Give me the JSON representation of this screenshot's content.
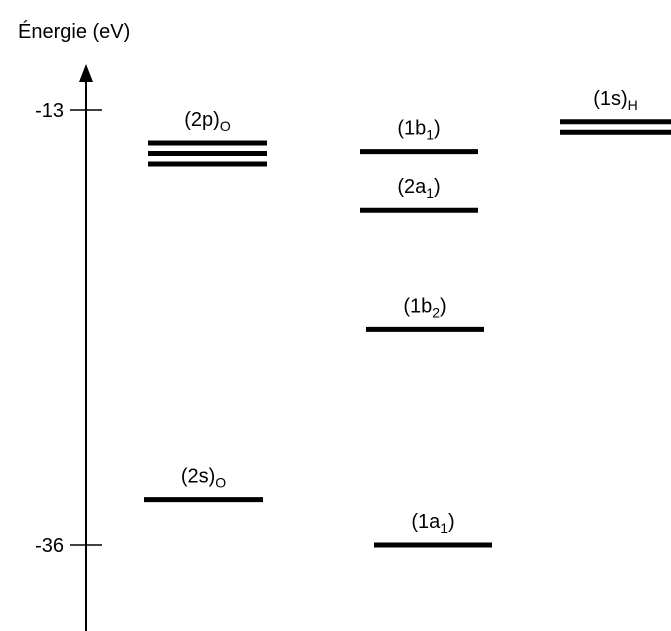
{
  "axis": {
    "title": "Énergie (eV)",
    "ticks": [
      -13,
      -36
    ]
  },
  "levels": [
    {
      "label": "(2p)",
      "sub": "O",
      "energy": -15.3,
      "degeneracy": 3
    },
    {
      "label": "(2s)",
      "sub": "O",
      "energy": -33.6,
      "degeneracy": 1
    },
    {
      "label": "(1b",
      "sub": "1",
      "tail": ")",
      "energy": -15.2,
      "degeneracy": 1
    },
    {
      "label": "(2a",
      "sub": "1",
      "tail": ")",
      "energy": -18.3,
      "degeneracy": 1
    },
    {
      "label": "(1b",
      "sub": "2",
      "tail": ")",
      "energy": -24.6,
      "degeneracy": 1
    },
    {
      "label": "(1a",
      "sub": "1",
      "tail": ")",
      "energy": -36,
      "degeneracy": 1
    },
    {
      "label": "(1s)",
      "sub": "H",
      "energy": -13.9,
      "degeneracy": 2
    }
  ]
}
